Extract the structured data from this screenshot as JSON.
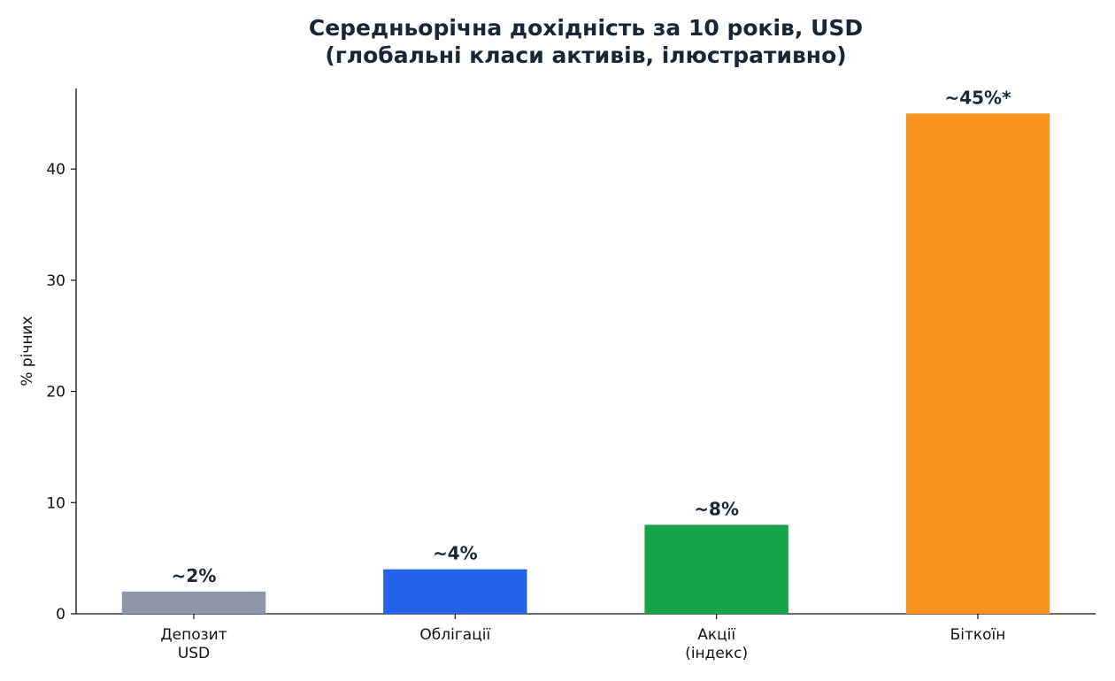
{
  "chart_data": {
    "type": "bar",
    "title": "Середньорічна дохідність за 10 років, USD\n(глобальні класи активів, ілюстративно)",
    "ylabel": "% річних",
    "categories": [
      "Депозит\nUSD",
      "Облігації",
      "Акції\n(індекс)",
      "Біткоїн"
    ],
    "values": [
      2,
      4,
      8,
      45
    ],
    "value_labels": [
      "~2%",
      "~4%",
      "~8%",
      "~45%*"
    ],
    "colors": [
      "#8c96a8",
      "#2563eb",
      "#16a34a",
      "#f7931e"
    ],
    "ylim": [
      0,
      47.25
    ],
    "yticks": [
      0,
      10,
      20,
      30,
      40
    ],
    "grid": false
  }
}
